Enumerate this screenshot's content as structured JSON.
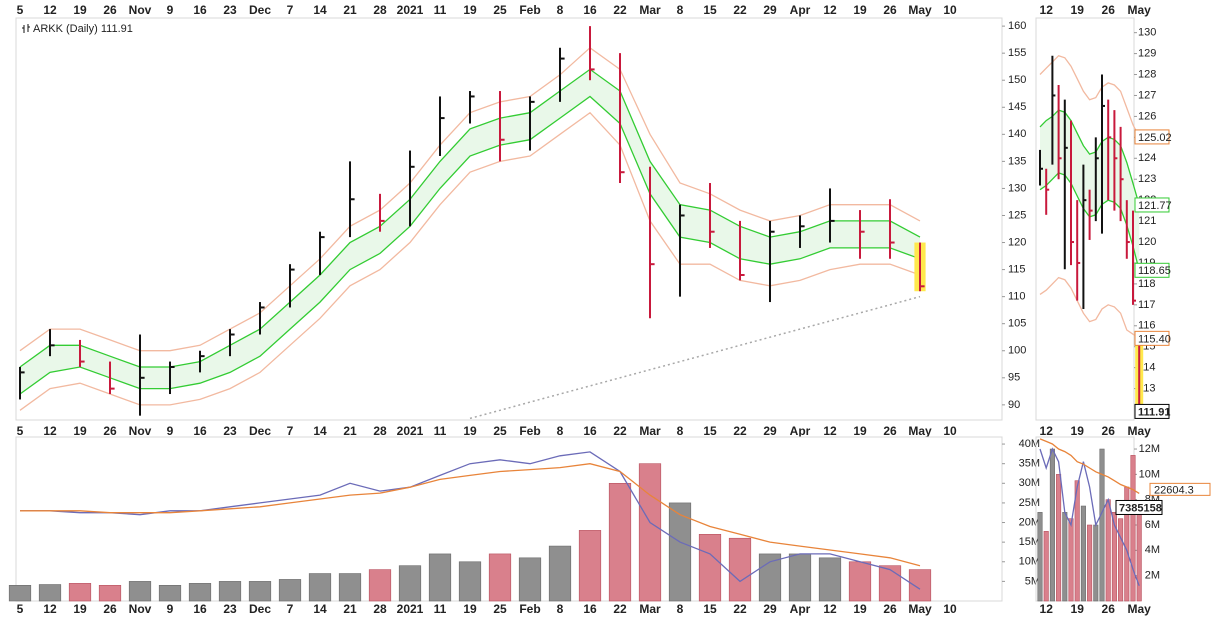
{
  "chart_data": [
    {
      "type": "ohlc",
      "title": "ARKK (Daily) 111.91",
      "categories": [
        "5",
        "12",
        "19",
        "26",
        "Nov",
        "9",
        "16",
        "23",
        "Dec",
        "7",
        "14",
        "21",
        "28",
        "2021",
        "11",
        "19",
        "25",
        "Feb",
        "8",
        "16",
        "22",
        "Mar",
        "8",
        "15",
        "22",
        "29",
        "Apr",
        "12",
        "19",
        "26",
        "May",
        "10"
      ],
      "high": [
        97,
        104,
        102,
        98,
        103,
        98,
        100,
        104,
        109,
        116,
        122,
        135,
        129,
        137,
        147,
        148,
        148,
        147,
        156,
        160,
        155,
        134,
        127,
        131,
        124,
        124,
        125,
        130,
        126,
        128,
        120,
        null
      ],
      "low": [
        91,
        99,
        97,
        92,
        88,
        92,
        96,
        99,
        103,
        108,
        114,
        121,
        122,
        123,
        136,
        142,
        135,
        137,
        146,
        150,
        131,
        106,
        110,
        119,
        113,
        109,
        119,
        120,
        117,
        117,
        111,
        null
      ],
      "close": [
        96,
        101,
        98,
        93,
        95,
        97,
        99,
        103,
        108,
        115,
        121,
        128,
        124,
        134,
        143,
        147,
        139,
        146,
        154,
        152,
        133,
        116,
        125,
        122,
        114,
        122,
        123,
        124,
        122,
        120,
        111.91,
        null
      ],
      "up_color": "#111111",
      "down_color": "#c8193c",
      "highlight_color": "#ffe94d",
      "band_fill": "#e9f8e9",
      "series": [
        {
          "color": "#f2b9a0",
          "values": [
            100,
            104,
            104,
            102,
            100,
            100,
            101,
            104,
            107,
            112,
            117,
            123,
            126,
            131,
            138,
            144,
            146,
            147,
            151,
            156,
            152,
            140,
            131,
            129,
            126,
            124,
            125,
            127,
            127,
            127,
            124,
            null
          ]
        },
        {
          "color": "#33cc33",
          "values": [
            97,
            101,
            101,
            99,
            97,
            97,
            98,
            101,
            104,
            109,
            114,
            120,
            123,
            128,
            135,
            141,
            143,
            144,
            148,
            152,
            148,
            135,
            127,
            126,
            123,
            121,
            122,
            124,
            124,
            124,
            121,
            null
          ]
        },
        {
          "color": "#33cc33",
          "values": [
            92,
            96,
            97,
            95,
            93,
            93,
            94,
            96,
            99,
            104,
            109,
            115,
            118,
            123,
            130,
            136,
            138,
            139,
            143,
            147,
            142,
            129,
            121,
            120,
            117,
            116,
            117,
            119,
            119,
            119,
            117,
            null
          ]
        },
        {
          "color": "#f2b9a0",
          "values": [
            89,
            93,
            94,
            92,
            90,
            90,
            91,
            93,
            96,
            101,
            106,
            112,
            115,
            120,
            127,
            133,
            135,
            136,
            140,
            144,
            138,
            124,
            116,
            116,
            113,
            112,
            113,
            115,
            116,
            116,
            114,
            null
          ]
        },
        {
          "color": "#a8a8a8",
          "dashed": true,
          "values": [
            null,
            null,
            null,
            null,
            null,
            null,
            null,
            null,
            null,
            null,
            null,
            null,
            null,
            null,
            null,
            87.5,
            89,
            90.5,
            92,
            93.5,
            95,
            96.5,
            98,
            99.5,
            101,
            102.5,
            104,
            105.5,
            107,
            108.5,
            110,
            null
          ]
        }
      ],
      "ylim": [
        87.2,
        161.5
      ],
      "yticks": [
        90,
        95,
        100,
        105,
        110,
        115,
        120,
        125,
        130,
        135,
        140,
        145,
        150,
        155,
        160
      ]
    },
    {
      "type": "volume",
      "categories": [
        "5",
        "12",
        "19",
        "26",
        "Nov",
        "9",
        "16",
        "23",
        "Dec",
        "7",
        "14",
        "21",
        "28",
        "2021",
        "11",
        "19",
        "25",
        "Feb",
        "8",
        "16",
        "22",
        "Mar",
        "8",
        "15",
        "22",
        "29",
        "Apr",
        "12",
        "19",
        "26",
        "May",
        "10"
      ],
      "values": [
        4000000,
        4200000,
        4500000,
        4000000,
        5000000,
        4000000,
        4500000,
        5000000,
        5000000,
        5500000,
        7000000,
        7000000,
        8000000,
        9000000,
        12000000,
        10000000,
        12000000,
        11000000,
        14000000,
        18000000,
        30000000,
        35000000,
        25000000,
        17000000,
        16000000,
        12000000,
        12000000,
        11000000,
        10000000,
        9000000,
        8000000,
        null
      ],
      "up_color": "#8f8f8f",
      "down_color": "#d9808c",
      "series": [
        {
          "color": "#6b6bb8",
          "values": [
            23000000,
            23000000,
            22500000,
            22500000,
            22000000,
            23000000,
            23000000,
            24000000,
            25000000,
            26000000,
            27000000,
            30000000,
            28000000,
            29000000,
            32000000,
            35000000,
            36000000,
            35000000,
            37000000,
            38000000,
            33000000,
            20000000,
            15000000,
            12000000,
            5000000,
            10000000,
            12000000,
            12000000,
            10000000,
            8000000,
            3000000,
            null
          ]
        },
        {
          "color": "#e8843a",
          "values": [
            23000000,
            23000000,
            23000000,
            22500000,
            22500000,
            22500000,
            23000000,
            23500000,
            24000000,
            25000000,
            26000000,
            27000000,
            27500000,
            29000000,
            31000000,
            32000000,
            33000000,
            33500000,
            34000000,
            35000000,
            33000000,
            27000000,
            22000000,
            19000000,
            17000000,
            15000000,
            14000000,
            13000000,
            12000000,
            11000000,
            9000000,
            null
          ]
        }
      ],
      "ylim": [
        0,
        41800000
      ],
      "yticks": [
        {
          "value": 5000000,
          "label": "5M"
        },
        {
          "value": 10000000,
          "label": "10M"
        },
        {
          "value": 15000000,
          "label": "15M"
        },
        {
          "value": 20000000,
          "label": "20M"
        },
        {
          "value": 25000000,
          "label": "25M"
        },
        {
          "value": 30000000,
          "label": "30M"
        },
        {
          "value": 35000000,
          "label": "35M"
        },
        {
          "value": 40000000,
          "label": "40M"
        }
      ]
    },
    {
      "type": "ohlc",
      "categories": [
        null,
        "12",
        null,
        null,
        null,
        null,
        "19",
        null,
        null,
        null,
        null,
        "26",
        null,
        null,
        null,
        null,
        "May"
      ],
      "high": [
        124.4,
        123.5,
        128.9,
        127.5,
        126.8,
        125.8,
        122,
        123.7,
        122.5,
        125,
        128,
        126.8,
        126.3,
        125.5,
        122,
        121.5,
        115.6
      ],
      "low": [
        122.7,
        121.3,
        123.7,
        123,
        118.7,
        118.9,
        117.2,
        116.8,
        120.1,
        121,
        120.4,
        122,
        121.5,
        121,
        119.2,
        117,
        111.8
      ],
      "close": [
        123.5,
        122.5,
        127,
        124,
        124.5,
        120,
        119,
        122,
        121.5,
        124,
        126.5,
        125,
        124,
        123,
        120,
        117.2,
        111.91
      ],
      "up_color": "#111111",
      "down_color": "#c8193c",
      "highlight_color": "#ffe94d",
      "band_fill": "#e9f8e9",
      "series": [
        {
          "color": "#f2b9a0",
          "values": [
            128,
            128.3,
            128.6,
            128.9,
            128.8,
            128.4,
            127.8,
            127.2,
            126.8,
            126.9,
            127.4,
            127.6,
            127.5,
            127.2,
            126.4,
            125.6,
            125.02
          ]
        },
        {
          "color": "#33cc33",
          "values": [
            125.5,
            125.8,
            126,
            126.3,
            126.2,
            125.8,
            125.2,
            124.6,
            124.2,
            124.3,
            124.8,
            125,
            124.9,
            124.6,
            123.8,
            122.8,
            121.77
          ]
        },
        {
          "color": "#33cc33",
          "values": [
            122.5,
            122.7,
            123,
            123.3,
            123.2,
            122.8,
            122.2,
            121.6,
            121.2,
            121.3,
            121.8,
            122,
            121.9,
            121.6,
            120.8,
            119.8,
            118.65
          ]
        },
        {
          "color": "#f2b9a0",
          "values": [
            117.5,
            117.7,
            118,
            118.3,
            118.2,
            117.8,
            117.2,
            116.6,
            116.2,
            116.3,
            116.8,
            117,
            116.9,
            116.6,
            115.8,
            115.6,
            115.4
          ]
        }
      ],
      "markers": [
        {
          "value": 125.02,
          "label": "125.02",
          "color": "#e8843a"
        },
        {
          "value": 121.77,
          "label": "121.77",
          "color": "#33cc33"
        },
        {
          "value": 118.65,
          "label": "118.65",
          "color": "#33cc33"
        },
        {
          "value": 115.4,
          "label": "115.40",
          "color": "#e8843a"
        },
        {
          "value": 111.91,
          "label": "111.91",
          "color": "#000000"
        }
      ],
      "ylim": [
        111.5,
        130.7
      ],
      "yticks": [
        113,
        114,
        115,
        116,
        117,
        118,
        119,
        120,
        121,
        122,
        123,
        124,
        125,
        126,
        127,
        128,
        129,
        130
      ]
    },
    {
      "type": "volume",
      "categories": [
        null,
        "12",
        null,
        null,
        null,
        null,
        "19",
        null,
        null,
        null,
        null,
        "26",
        null,
        null,
        null,
        null,
        "May"
      ],
      "values": [
        7000000,
        5500000,
        12000000,
        10000000,
        7000000,
        6500000,
        9500000,
        7500000,
        6000000,
        6000000,
        12000000,
        8000000,
        7000000,
        6500000,
        9000000,
        11500000,
        7385158
      ],
      "up_color": "#8f8f8f",
      "down_color": "#d9808c",
      "series": [
        {
          "color": "#6b6bb8",
          "values": [
            12000000,
            10500000,
            12000000,
            11000000,
            7000000,
            6000000,
            9000000,
            11000000,
            9000000,
            6000000,
            7000000,
            8000000,
            6000000,
            5000000,
            4000000,
            2500000,
            1200000
          ]
        },
        {
          "color": "#e8843a",
          "values": [
            12800000,
            12600000,
            12400000,
            12000000,
            11800000,
            11500000,
            11000000,
            10800000,
            10500000,
            10200000,
            10000000,
            9800000,
            9500000,
            9200000,
            9000000,
            8800000,
            8500000
          ]
        }
      ],
      "markers": [
        {
          "value": 7385158,
          "color": "#000000"
        }
      ],
      "annotations": [
        "22604.3"
      ],
      "ylim": [
        0,
        12950000
      ],
      "yticks": [
        {
          "value": 2000000,
          "label": "2M"
        },
        {
          "value": 4000000,
          "label": "4M"
        },
        {
          "value": 6000000,
          "label": "6M"
        },
        {
          "value": 8000000,
          "label": "8M"
        },
        {
          "value": 10000000,
          "label": "10M"
        },
        {
          "value": 12000000,
          "label": "12M"
        }
      ]
    }
  ]
}
